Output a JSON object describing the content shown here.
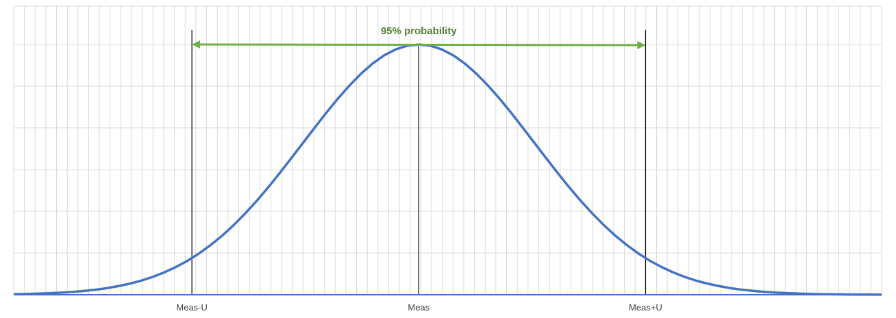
{
  "chart_data": {
    "type": "line",
    "title": "",
    "xlabel": "",
    "ylabel": "",
    "distribution": "normal",
    "mean": 0,
    "sigma": 1,
    "xlim": [
      -3.5,
      4.0
    ],
    "ylim": [
      0,
      0.46
    ],
    "y_gridlines": [
      0.0665,
      0.133,
      0.1995,
      0.266,
      0.3325,
      0.399
    ],
    "grid": true,
    "tick_labels": [
      {
        "x": -1.96,
        "label": "Meas-U"
      },
      {
        "x": 0,
        "label": "Meas"
      },
      {
        "x": 1.96,
        "label": "Meas+U"
      }
    ],
    "reference_lines": [
      {
        "x": -1.96
      },
      {
        "x": 0
      },
      {
        "x": 1.96
      }
    ],
    "annotation": {
      "text": "95% probability",
      "from_x": -1.96,
      "to_x": 1.96,
      "y": 0.415,
      "color": "#70AD47"
    },
    "series": [
      {
        "color": "#4472C4",
        "x": [
          -3.5,
          -3.4,
          -3.3,
          -3.2,
          -3.1,
          -3.0,
          -2.9,
          -2.8,
          -2.7,
          -2.6,
          -2.5,
          -2.4,
          -2.3,
          -2.2,
          -2.1,
          -2.0,
          -1.9,
          -1.8,
          -1.7,
          -1.6,
          -1.5,
          -1.4,
          -1.3,
          -1.2,
          -1.1,
          -1.0,
          -0.9,
          -0.8,
          -0.7,
          -0.6,
          -0.5,
          -0.4,
          -0.3,
          -0.2,
          -0.1,
          0.0,
          0.1,
          0.2,
          0.3,
          0.4,
          0.5,
          0.6,
          0.7,
          0.8,
          0.9,
          1.0,
          1.1,
          1.2,
          1.3,
          1.4,
          1.5,
          1.6,
          1.7,
          1.8,
          1.9,
          2.0,
          2.1,
          2.2,
          2.3,
          2.4,
          2.5,
          2.6,
          2.7,
          2.8,
          2.9,
          3.0,
          3.1,
          3.2,
          3.3,
          3.4,
          3.5,
          3.6,
          3.7,
          3.8,
          3.9,
          4.0
        ],
        "y": [
          0.0009,
          0.0012,
          0.0017,
          0.0024,
          0.0033,
          0.0044,
          0.006,
          0.0079,
          0.0104,
          0.0136,
          0.0175,
          0.0224,
          0.0283,
          0.0355,
          0.044,
          0.054,
          0.0656,
          0.079,
          0.094,
          0.1109,
          0.1295,
          0.1497,
          0.1714,
          0.1942,
          0.2179,
          0.242,
          0.2661,
          0.2897,
          0.3123,
          0.3332,
          0.3521,
          0.3683,
          0.3814,
          0.391,
          0.397,
          0.3989,
          0.397,
          0.391,
          0.3814,
          0.3683,
          0.3521,
          0.3332,
          0.3123,
          0.2897,
          0.2661,
          0.242,
          0.2179,
          0.1942,
          0.1714,
          0.1497,
          0.1295,
          0.1109,
          0.094,
          0.079,
          0.0656,
          0.054,
          0.044,
          0.0355,
          0.0283,
          0.0224,
          0.0175,
          0.0136,
          0.0104,
          0.0079,
          0.006,
          0.0044,
          0.0033,
          0.0024,
          0.0017,
          0.0012,
          0.0009,
          0.0006,
          0.0004,
          0.0003,
          0.0002,
          0.0001
        ]
      }
    ]
  }
}
